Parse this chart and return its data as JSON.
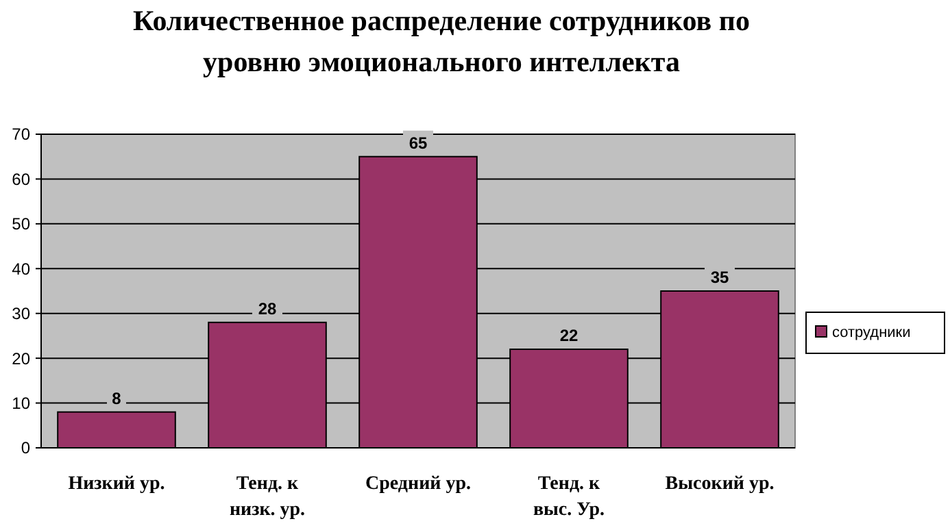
{
  "chart_data": {
    "type": "bar",
    "title": "Количественное распределение сотрудников по уровню эмоционального интеллекта",
    "categories": [
      "Низкий ур.",
      "Тенд. к низк. ур.",
      "Средний ур.",
      "Тенд. к выс. Ур.",
      "Высокий ур."
    ],
    "series": [
      {
        "name": "сотрудники",
        "color": "#993366",
        "values": [
          8,
          28,
          65,
          22,
          35
        ]
      }
    ],
    "ylim": [
      0,
      70
    ],
    "yticks": [
      0,
      10,
      20,
      30,
      40,
      50,
      60,
      70
    ],
    "grid": "y",
    "legend": "right",
    "data_labels": true
  }
}
